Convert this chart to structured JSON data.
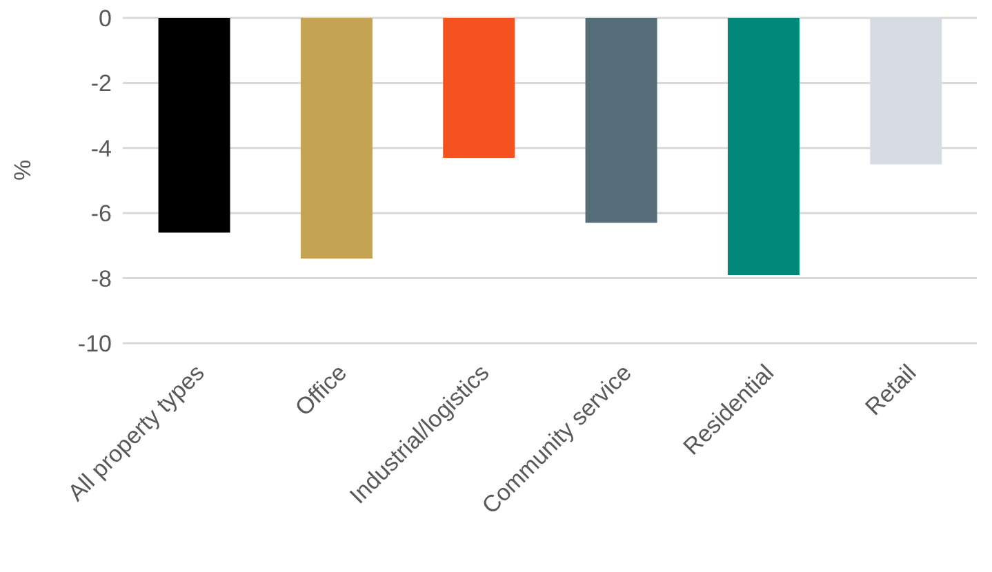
{
  "chart_data": {
    "type": "bar",
    "ylabel": "%",
    "categories": [
      "All property types",
      "Office",
      "Industrial/logistics",
      "Community service",
      "Residential",
      "Retail"
    ],
    "values": [
      -6.6,
      -7.4,
      -4.3,
      -6.3,
      -7.9,
      -4.5
    ],
    "colors": [
      "#000000",
      "#c4a452",
      "#f55220",
      "#546d79",
      "#00897a",
      "#d6dce5"
    ],
    "ylim": [
      -10,
      0
    ],
    "yticks": [
      -10,
      -8,
      -6,
      -4,
      -2,
      0
    ],
    "grid": "y"
  }
}
